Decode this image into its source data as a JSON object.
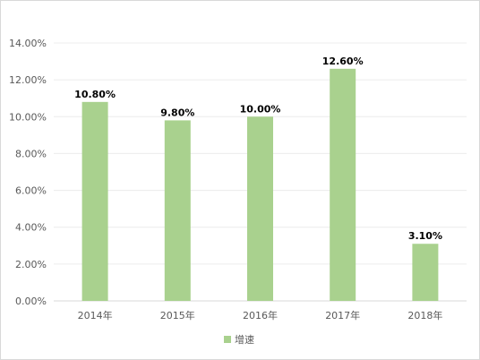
{
  "chart_data": {
    "type": "bar",
    "categories": [
      "2014年",
      "2015年",
      "2016年",
      "2017年",
      "2018年"
    ],
    "series": [
      {
        "name": "增速",
        "values": [
          10.8,
          9.8,
          10.0,
          12.6,
          3.1
        ],
        "labels": [
          "10.80%",
          "9.80%",
          "10.00%",
          "12.60%",
          "3.10%"
        ],
        "color": "#a9d18e"
      }
    ],
    "ylim": [
      0,
      14
    ],
    "yticks": [
      0,
      2,
      4,
      6,
      8,
      10,
      12,
      14
    ],
    "ytick_labels": [
      "0.00%",
      "2.00%",
      "4.00%",
      "6.00%",
      "8.00%",
      "10.00%",
      "12.00%",
      "14.00%"
    ],
    "grid": true,
    "legend": "bottom"
  }
}
